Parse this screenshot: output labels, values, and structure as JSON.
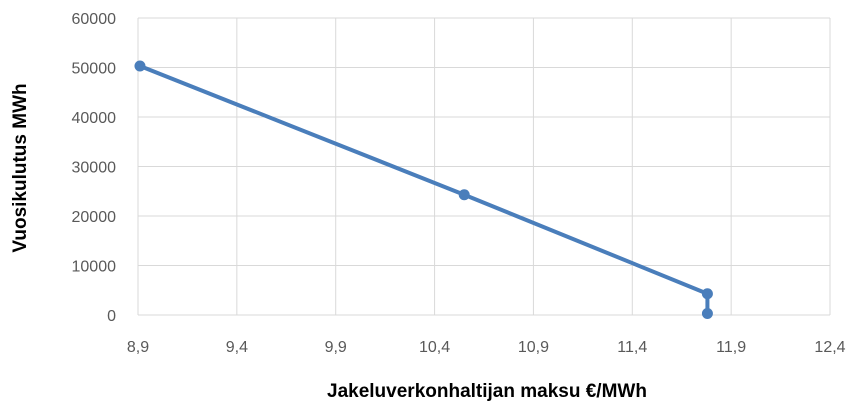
{
  "chart_data": {
    "type": "scatter",
    "title": "",
    "xlabel": "Jakeluverkonhaltijan maksu €/MWh",
    "ylabel": "Vuosikulutus MWh",
    "xlim": [
      8.9,
      12.4
    ],
    "ylim": [
      0,
      60000
    ],
    "x_ticks": [
      "8,9",
      "9,4",
      "9,9",
      "10,4",
      "10,9",
      "11,4",
      "11,9",
      "12,4"
    ],
    "y_ticks": [
      "0",
      "10000",
      "20000",
      "30000",
      "40000",
      "50000",
      "60000"
    ],
    "grid": true,
    "legend": "none",
    "series": [
      {
        "points": [
          {
            "x": 8.91,
            "y": 50300
          },
          {
            "x": 10.55,
            "y": 24300
          },
          {
            "x": 11.78,
            "y": 4300
          },
          {
            "x": 11.78,
            "y": 300
          }
        ]
      }
    ],
    "colors": {
      "series": "#4a7ebb",
      "grid": "#d9d9d9",
      "tick_text": "#595959",
      "title_text": "#000000"
    }
  }
}
